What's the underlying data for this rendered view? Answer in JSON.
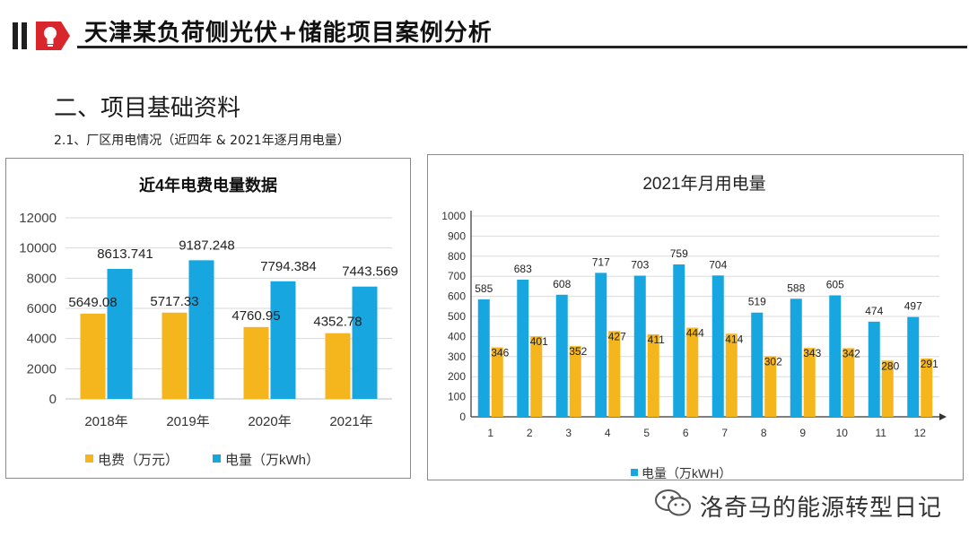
{
  "header": {
    "title": "天津某负荷侧光伏+储能项目案例分析"
  },
  "section_title": "二、项目基础资料",
  "subtitle": "2.1、厂区用电情况（近四年 & 2021年逐月用电量）",
  "colors": {
    "orange": "#f5b51d",
    "blue": "#17a6e0",
    "red_logo": "#d8262c"
  },
  "chart_data": [
    {
      "type": "bar",
      "title": "近4年电费电量数据",
      "categories": [
        "2018年",
        "2019年",
        "2020年",
        "2021年"
      ],
      "series": [
        {
          "name": "电费（万元）",
          "values": [
            5649.08,
            5717.33,
            4760.95,
            4352.78
          ],
          "labels": [
            "5649.08",
            "5717.33",
            "4760.95",
            "4352.78"
          ]
        },
        {
          "name": "电量（万kWh）",
          "values": [
            8613.741,
            9187.248,
            7794.384,
            7443.569
          ],
          "labels": [
            "8613.741",
            "9187.248",
            "7794.384",
            "7443.569"
          ]
        }
      ],
      "ylim": [
        0,
        12000
      ],
      "yticks": [
        0,
        2000,
        4000,
        6000,
        8000,
        10000,
        12000
      ],
      "grid": true,
      "legend": "bottom"
    },
    {
      "type": "bar",
      "title": "2021年月用电量",
      "categories": [
        "1",
        "2",
        "3",
        "4",
        "5",
        "6",
        "7",
        "8",
        "9",
        "10",
        "11",
        "12"
      ],
      "series": [
        {
          "name": "电量（万kWH）",
          "values": [
            585,
            683,
            608,
            717,
            703,
            759,
            704,
            519,
            588,
            605,
            474,
            497
          ]
        },
        {
          "name": "",
          "values": [
            346,
            401,
            352,
            427,
            411,
            444,
            414,
            302,
            343,
            342,
            280,
            291
          ]
        }
      ],
      "ylim": [
        0,
        1000
      ],
      "yticks": [
        0,
        100,
        200,
        300,
        400,
        500,
        600,
        700,
        800,
        900,
        1000
      ],
      "grid": true,
      "legend": "bottom"
    }
  ],
  "watermark": {
    "text": "洛奇马的能源转型日记",
    "icon": "wechat-icon"
  }
}
